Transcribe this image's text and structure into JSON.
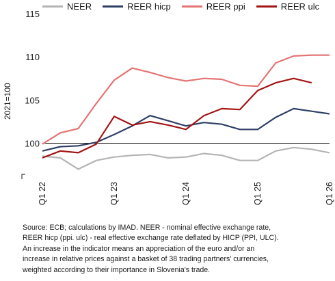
{
  "chart_data": {
    "type": "line",
    "ylabel": "2021=100",
    "xlabel": "",
    "ylim": [
      96,
      115
    ],
    "yticks": [
      100,
      105,
      110,
      115
    ],
    "x_ticklabels": [
      "Q1 22",
      "Q1 23",
      "Q1 24",
      "Q1 25",
      "Q1 26"
    ],
    "x": [
      "Q1 22",
      "Q2 22",
      "Q3 22",
      "Q4 22",
      "Q1 23",
      "Q2 23",
      "Q3 23",
      "Q4 23",
      "Q1 24",
      "Q2 24",
      "Q3 24",
      "Q4 24",
      "Q1 25",
      "Q2 25",
      "Q3 25",
      "Q4 25",
      "Q1 26"
    ],
    "reference_line": 100,
    "grid": false,
    "legend_position": "top",
    "series": [
      {
        "name": "NEER",
        "color": "#b4b4b4",
        "values": [
          98.5,
          98.3,
          97.0,
          98.0,
          98.4,
          98.6,
          98.7,
          98.3,
          98.4,
          98.8,
          98.6,
          98.0,
          98.0,
          99.1,
          99.5,
          99.3,
          98.9
        ]
      },
      {
        "name": "REER hicp",
        "color": "#2e3f66",
        "values": [
          99.1,
          99.6,
          99.7,
          100.1,
          101.0,
          102.0,
          103.2,
          102.6,
          102.0,
          102.4,
          102.2,
          101.6,
          101.6,
          103.0,
          104.0,
          103.7,
          103.4
        ]
      },
      {
        "name": "REER ppi",
        "color": "#e57373",
        "values": [
          99.9,
          101.2,
          101.7,
          104.6,
          107.3,
          108.7,
          108.2,
          107.6,
          107.2,
          107.5,
          107.4,
          106.7,
          106.6,
          109.3,
          110.1,
          110.2,
          110.2
        ]
      },
      {
        "name": "REER ulc",
        "color": "#a31414",
        "values": [
          98.3,
          99.1,
          98.9,
          99.9,
          103.1,
          102.1,
          102.5,
          102.1,
          101.6,
          103.2,
          104.0,
          103.9,
          106.1,
          107.0,
          107.5,
          107.0,
          null
        ]
      }
    ]
  },
  "source_note": [
    "Source: ECB; calculations by IMAD. NEER - nominal effective exchange rate,",
    "REER hicp (ppi. ulc) - real effective exchange rate deflated by HICP (PPI, ULC).",
    "An increase in the indicator means an appreciation of the euro and/or an",
    "increase in relative prices against a basket of 38 trading partners' currencies,",
    "weighted according to their importance in Slovenia's trade."
  ]
}
